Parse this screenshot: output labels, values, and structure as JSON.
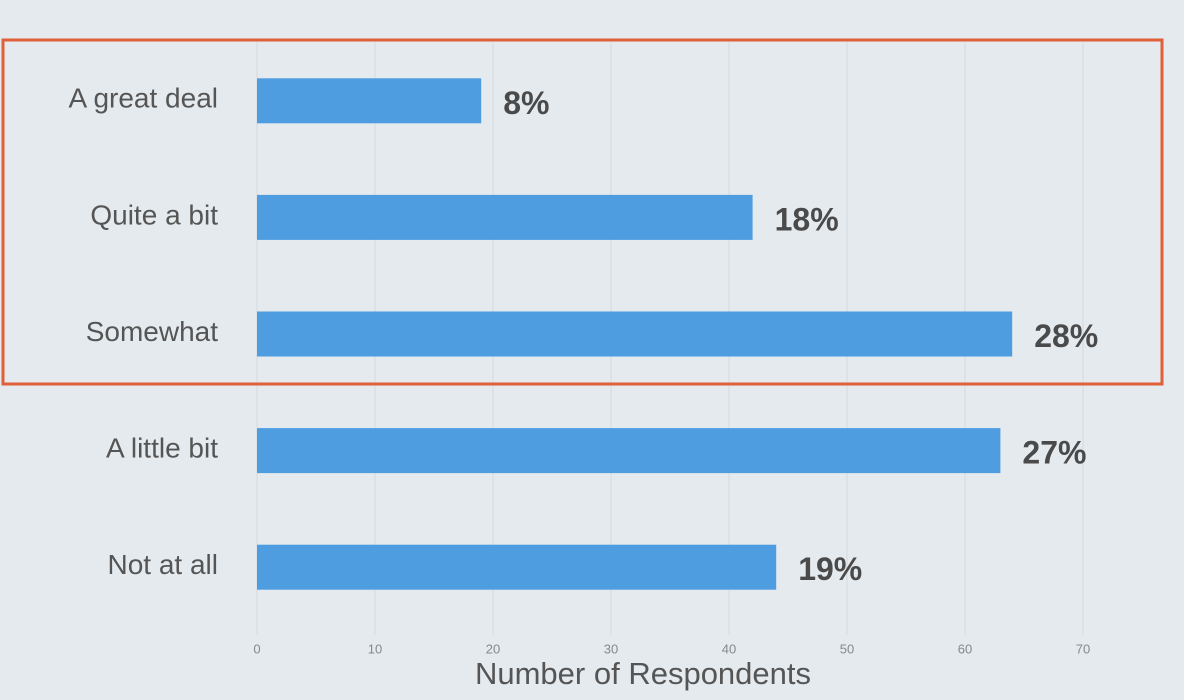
{
  "chart_data": {
    "type": "barh",
    "categories": [
      "A great deal",
      "Quite a bit",
      "Somewhat",
      "A little bit",
      "Not at all"
    ],
    "values": [
      19,
      42,
      64,
      63,
      44
    ],
    "value_labels": [
      "8%",
      "18%",
      "28%",
      "27%",
      "19%"
    ],
    "color": "#4d9de0",
    "x_label": "Number of Respondents",
    "xlim": [
      0,
      70
    ],
    "xticks": [
      0,
      10,
      20,
      30,
      40,
      50,
      60,
      70
    ],
    "grid": true
  }
}
